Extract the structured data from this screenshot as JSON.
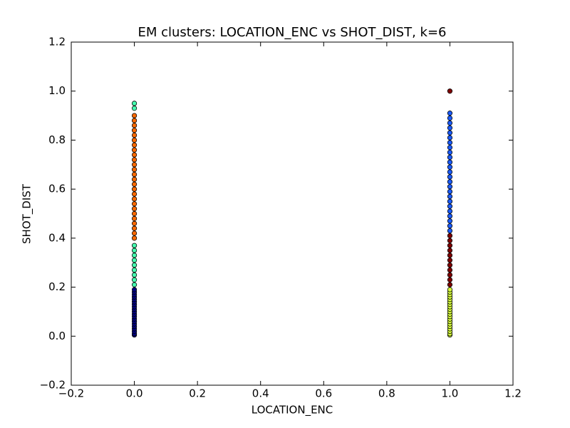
{
  "chart_data": {
    "type": "scatter",
    "title": "EM clusters: LOCATION_ENC vs SHOT_DIST, k=6",
    "x_label": "LOCATION_ENC",
    "y_label": "SHOT_DIST",
    "xlim": [
      -0.2,
      1.2
    ],
    "ylim": [
      -0.2,
      1.2
    ],
    "xticks": [
      {
        "value": -0.2,
        "label": "−0.2"
      },
      {
        "value": 0,
        "label": "0.0"
      },
      0.2,
      0.4,
      0.6,
      0.8,
      {
        "value": 1,
        "label": "1.0"
      },
      1.2
    ],
    "yticks": [
      {
        "value": -0.2,
        "label": "−0.2"
      },
      {
        "value": 0,
        "label": "0.0"
      },
      0.2,
      0.4,
      0.6,
      0.8,
      {
        "value": 1,
        "label": "1.0"
      },
      1.2
    ],
    "series": [
      {
        "color": "#00007f",
        "x": [
          0,
          0,
          0,
          0,
          0,
          0,
          0,
          0,
          0,
          0,
          0,
          0,
          0,
          0,
          0,
          0,
          0,
          0,
          0,
          0
        ],
        "values": [
          0.005,
          0.01,
          0.02,
          0.03,
          0.04,
          0.05,
          0.06,
          0.07,
          0.08,
          0.09,
          0.1,
          0.11,
          0.12,
          0.13,
          0.14,
          0.15,
          0.16,
          0.17,
          0.18,
          0.19
        ]
      },
      {
        "color": "#46ffb0",
        "x": [
          0,
          0,
          0,
          0,
          0,
          0,
          0,
          0,
          0,
          0,
          0
        ],
        "values": [
          0.21,
          0.23,
          0.25,
          0.27,
          0.29,
          0.31,
          0.33,
          0.35,
          0.37,
          0.93,
          0.95
        ]
      },
      {
        "color": "#ff6a00",
        "x": [
          0,
          0,
          0,
          0,
          0,
          0,
          0,
          0,
          0,
          0,
          0,
          0,
          0,
          0,
          0,
          0,
          0,
          0,
          0,
          0,
          0,
          0,
          0,
          0,
          0,
          0
        ],
        "values": [
          0.4,
          0.42,
          0.44,
          0.46,
          0.48,
          0.5,
          0.52,
          0.54,
          0.56,
          0.58,
          0.6,
          0.62,
          0.64,
          0.66,
          0.68,
          0.7,
          0.72,
          0.74,
          0.76,
          0.78,
          0.8,
          0.82,
          0.84,
          0.86,
          0.88,
          0.9
        ]
      },
      {
        "color": "#d8ff3c",
        "x": [
          1,
          1,
          1,
          1,
          1,
          1,
          1,
          1,
          1,
          1,
          1,
          1,
          1,
          1,
          1,
          1,
          1,
          1,
          1,
          1
        ],
        "values": [
          0.005,
          0.01,
          0.02,
          0.03,
          0.04,
          0.05,
          0.06,
          0.07,
          0.08,
          0.09,
          0.1,
          0.11,
          0.12,
          0.13,
          0.14,
          0.15,
          0.16,
          0.17,
          0.18,
          0.19
        ]
      },
      {
        "color": "#800000",
        "x": [
          1,
          1,
          1,
          1,
          1,
          1,
          1,
          1,
          1,
          1,
          1,
          1
        ],
        "values": [
          0.21,
          0.23,
          0.25,
          0.27,
          0.29,
          0.31,
          0.33,
          0.35,
          0.37,
          0.39,
          0.41,
          1
        ]
      },
      {
        "color": "#1c5cff",
        "x": [
          1,
          1,
          1,
          1,
          1,
          1,
          1,
          1,
          1,
          1,
          1,
          1,
          1,
          1,
          1,
          1,
          1,
          1,
          1,
          1,
          1,
          1,
          1,
          1,
          1
        ],
        "values": [
          0.43,
          0.45,
          0.47,
          0.49,
          0.51,
          0.53,
          0.55,
          0.57,
          0.59,
          0.61,
          0.63,
          0.65,
          0.67,
          0.69,
          0.71,
          0.73,
          0.75,
          0.77,
          0.79,
          0.81,
          0.83,
          0.85,
          0.87,
          0.89,
          0.91
        ]
      }
    ]
  }
}
